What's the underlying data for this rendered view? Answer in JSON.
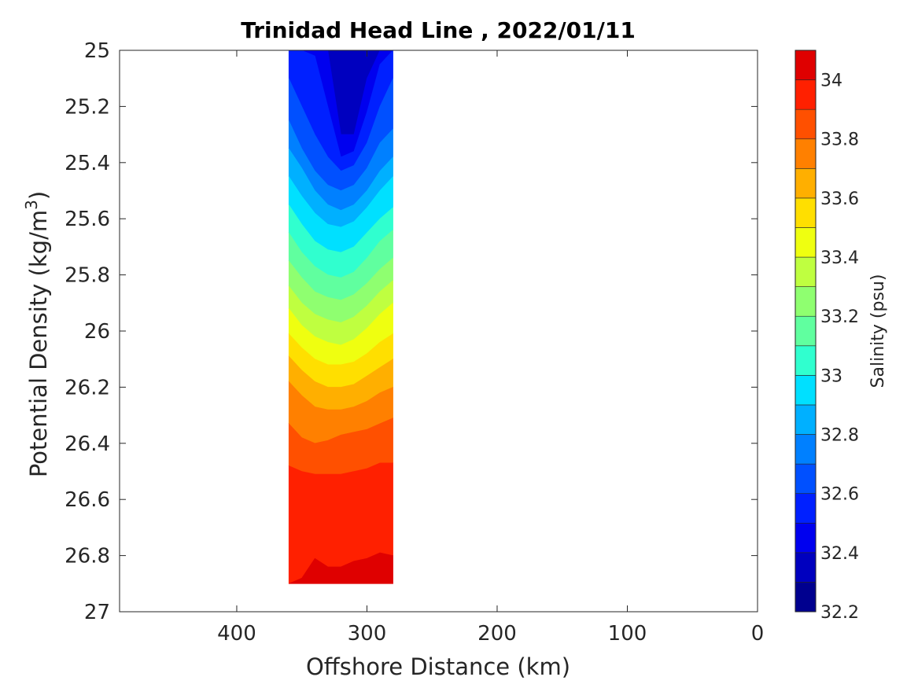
{
  "chart_data": {
    "type": "heatmap",
    "subtype": "filled-contour",
    "title": "Trinidad Head Line , 2022/01/11",
    "xlabel": "Offshore Distance (km)",
    "ylabel_main": "Potential Density (kg/m",
    "ylabel_sup": "3",
    "ylabel_end": ")",
    "colorbar_label": "Salinity (psu)",
    "x_axis": {
      "range": [
        490,
        0
      ],
      "reversed": true,
      "ticks": [
        400,
        300,
        200,
        100,
        0
      ]
    },
    "y_axis": {
      "range": [
        25,
        27
      ],
      "reversed": true,
      "ticks": [
        25,
        25.2,
        25.4,
        25.6,
        25.8,
        26,
        26.2,
        26.4,
        26.6,
        26.8,
        27
      ]
    },
    "y_tick_labels": [
      "25",
      "25.2",
      "25.4",
      "25.6",
      "25.8",
      "26",
      "26.2",
      "26.4",
      "26.6",
      "26.8",
      "27"
    ],
    "x_tick_labels": [
      "400",
      "300",
      "200",
      "100",
      "0"
    ],
    "data_extent": {
      "x": [
        360,
        280
      ],
      "y": [
        25,
        26.9
      ]
    },
    "colorbar": {
      "range": [
        32.2,
        34.1
      ],
      "ticks": [
        32.2,
        32.4,
        32.6,
        32.8,
        33,
        33.2,
        33.4,
        33.6,
        33.8,
        34
      ],
      "tick_labels": [
        "32.2",
        "32.4",
        "32.6",
        "32.8",
        "33",
        "33.2",
        "33.4",
        "33.6",
        "33.8",
        "34"
      ],
      "levels": [
        32.2,
        32.3,
        32.4,
        32.5,
        32.6,
        32.7,
        32.8,
        32.9,
        33.0,
        33.1,
        33.2,
        33.3,
        33.4,
        33.5,
        33.6,
        33.7,
        33.8,
        33.9,
        34.0,
        34.1
      ],
      "colors": [
        "#00008F",
        "#0000BF",
        "#0000EF",
        "#0020FF",
        "#0050FF",
        "#0080FF",
        "#00B0FF",
        "#00E0FF",
        "#30FFCF",
        "#60FF9F",
        "#8FFF70",
        "#BFFF40",
        "#EFFF10",
        "#FFDF00",
        "#FFAF00",
        "#FF8000",
        "#FF5000",
        "#FF2000",
        "#DF0000",
        "#AF0000"
      ]
    },
    "stations_x": [
      360,
      350,
      340,
      330,
      320,
      310,
      300,
      290,
      280
    ],
    "contours": [
      {
        "level": 32.4,
        "y": [
          25,
          25,
          25,
          25.0,
          25.3,
          25.3,
          25.1,
          25,
          25
        ]
      },
      {
        "level": 32.5,
        "y": [
          25,
          25,
          25.02,
          25.2,
          25.38,
          25.36,
          25.22,
          25.05,
          25.0
        ]
      },
      {
        "level": 32.6,
        "y": [
          25.1,
          25.2,
          25.3,
          25.38,
          25.43,
          25.41,
          25.33,
          25.2,
          25.1
        ]
      },
      {
        "level": 32.7,
        "y": [
          25.25,
          25.35,
          25.43,
          25.48,
          25.5,
          25.48,
          25.42,
          25.33,
          25.28
        ]
      },
      {
        "level": 32.8,
        "y": [
          25.35,
          25.42,
          25.5,
          25.55,
          25.57,
          25.55,
          25.5,
          25.43,
          25.38
        ]
      },
      {
        "level": 32.9,
        "y": [
          25.45,
          25.52,
          25.58,
          25.62,
          25.63,
          25.61,
          25.56,
          25.5,
          25.45
        ]
      },
      {
        "level": 33.0,
        "y": [
          25.55,
          25.62,
          25.68,
          25.71,
          25.72,
          25.7,
          25.65,
          25.6,
          25.56
        ]
      },
      {
        "level": 33.1,
        "y": [
          25.65,
          25.72,
          25.77,
          25.8,
          25.81,
          25.79,
          25.74,
          25.68,
          25.64
        ]
      },
      {
        "level": 33.2,
        "y": [
          25.75,
          25.81,
          25.86,
          25.88,
          25.89,
          25.87,
          25.83,
          25.78,
          25.74
        ]
      },
      {
        "level": 33.3,
        "y": [
          25.84,
          25.9,
          25.94,
          25.96,
          25.97,
          25.95,
          25.91,
          25.86,
          25.82
        ]
      },
      {
        "level": 33.4,
        "y": [
          25.92,
          25.98,
          26.02,
          26.04,
          26.05,
          26.03,
          25.99,
          25.94,
          25.9
        ]
      },
      {
        "level": 33.5,
        "y": [
          26.01,
          26.06,
          26.1,
          26.12,
          26.12,
          26.11,
          26.08,
          26.04,
          26.01
        ]
      },
      {
        "level": 33.6,
        "y": [
          26.09,
          26.14,
          26.18,
          26.2,
          26.2,
          26.19,
          26.16,
          26.13,
          26.1
        ]
      },
      {
        "level": 33.7,
        "y": [
          26.18,
          26.23,
          26.27,
          26.28,
          26.28,
          26.27,
          26.25,
          26.22,
          26.2
        ]
      },
      {
        "level": 33.8,
        "y": [
          26.33,
          26.38,
          26.4,
          26.39,
          26.37,
          26.36,
          26.35,
          26.33,
          26.31
        ]
      },
      {
        "level": 33.9,
        "y": [
          26.48,
          26.5,
          26.51,
          26.51,
          26.51,
          26.5,
          26.49,
          26.47,
          26.47
        ]
      },
      {
        "level": 34.0,
        "y": [
          26.9,
          26.88,
          26.81,
          26.84,
          26.84,
          26.82,
          26.81,
          26.79,
          26.8
        ]
      }
    ]
  }
}
